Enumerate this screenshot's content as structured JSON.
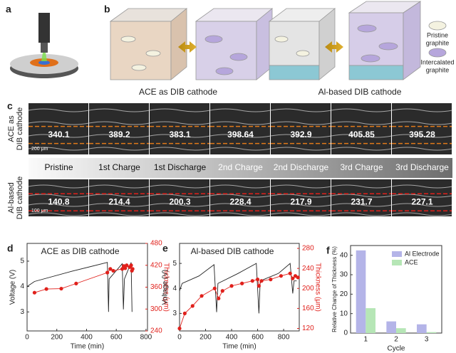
{
  "panel_a": {
    "label": "a"
  },
  "panel_b": {
    "label": "b",
    "legend": [
      [
        "Pristine",
        "graphite"
      ],
      [
        "Intercalated",
        "graphite"
      ]
    ]
  },
  "panel_c": {
    "label": "c",
    "headers": [
      "ACE as DIB cathode",
      "Al-based DIB cathode"
    ],
    "row_labels": [
      [
        "ACE as",
        "DIB cathode"
      ],
      [
        "Al-based",
        "DIB cathode"
      ]
    ],
    "stages": [
      "Pristine",
      "1st Charge",
      "1st Discharge",
      "2nd Charge",
      "2nd Discharge",
      "3rd Charge",
      "3rd Discharge"
    ],
    "row1": [
      340.1,
      389.2,
      383.1,
      398.64,
      392.9,
      405.85,
      395.28
    ],
    "row2": [
      140.8,
      214.4,
      200.3,
      228.4,
      217.9,
      231.7,
      227.1
    ],
    "scale_bars": [
      "200 μm",
      "100 μm"
    ]
  },
  "chart_data": [
    {
      "type": "line",
      "panel": "d",
      "title": "ACE as DIB cathode",
      "xlabel": "Time (min)",
      "ylabel": "Voltage (V)",
      "y2label": "Thickness (μm)",
      "xlim": [
        0,
        810
      ],
      "xticks": [
        0,
        200,
        400,
        600,
        800
      ],
      "ylim": [
        2.25,
        5.7
      ],
      "yticks": [
        3,
        4,
        5
      ],
      "y2lim": [
        240,
        480
      ],
      "y2ticks": [
        240,
        300,
        360,
        420,
        480
      ],
      "series": [
        {
          "name": "Voltage",
          "color": "#222222",
          "x": [
            0,
            50,
            300,
            540,
            548,
            552,
            640,
            648,
            655,
            700,
            706
          ],
          "values": [
            4.0,
            4.2,
            4.6,
            4.95,
            3.0,
            4.3,
            4.9,
            3.1,
            4.3,
            4.95,
            3.0
          ]
        },
        {
          "name": "Thickness",
          "color": "#e0201b",
          "axis": "y2",
          "marker": "circle",
          "x": [
            50,
            130,
            230,
            330,
            540,
            560,
            580,
            640,
            650,
            660,
            670,
            690,
            700,
            705,
            710
          ],
          "values": [
            345,
            355,
            356,
            370,
            400,
            410,
            405,
            410,
            418,
            412,
            420,
            415,
            420,
            405,
            410
          ]
        }
      ]
    },
    {
      "type": "line",
      "panel": "e",
      "title": "Al-based DIB cathode",
      "xlabel": "Time (min)",
      "ylabel": "Voltage (V)",
      "y2label": "Thickness (μm)",
      "xlim": [
        0,
        920
      ],
      "xticks": [
        0,
        200,
        400,
        600,
        800
      ],
      "ylim": [
        2.3,
        5.8
      ],
      "yticks": [
        3,
        4,
        5
      ],
      "y2lim": [
        115,
        290
      ],
      "y2ticks": [
        120,
        160,
        200,
        240,
        280
      ],
      "series": [
        {
          "name": "Voltage",
          "color": "#222222",
          "x": [
            0,
            20,
            150,
            265,
            285,
            295,
            450,
            590,
            610,
            620,
            760,
            850,
            870,
            880,
            900
          ],
          "values": [
            3.9,
            4.2,
            4.5,
            4.95,
            3.05,
            4.2,
            4.6,
            5.0,
            3.0,
            4.3,
            4.6,
            5.0,
            3.8,
            4.3,
            4.3
          ]
        },
        {
          "name": "Thickness",
          "color": "#e0201b",
          "axis": "y2",
          "marker": "circle",
          "x": [
            0,
            40,
            100,
            170,
            270,
            300,
            330,
            400,
            480,
            560,
            600,
            610,
            630,
            700,
            780,
            850,
            870,
            890,
            910
          ],
          "values": [
            120,
            150,
            165,
            185,
            200,
            180,
            195,
            205,
            210,
            215,
            218,
            205,
            215,
            218,
            225,
            230,
            220,
            225,
            222
          ]
        }
      ]
    },
    {
      "type": "bar",
      "panel": "f",
      "xlabel": "Cycle",
      "ylabel": "Relative Change of Thickness (%)",
      "categories": [
        "1",
        "2",
        "3"
      ],
      "ylim": [
        0,
        45
      ],
      "yticks": [
        0,
        10,
        20,
        30,
        40
      ],
      "legend": "upper right",
      "series": [
        {
          "name": "Al Electrode",
          "color": "#b4b4e8",
          "values": [
            42.5,
            6,
            4.5
          ]
        },
        {
          "name": "ACE",
          "color": "#b6e6b6",
          "values": [
            12.8,
            2.5,
            0.5
          ]
        }
      ]
    }
  ]
}
